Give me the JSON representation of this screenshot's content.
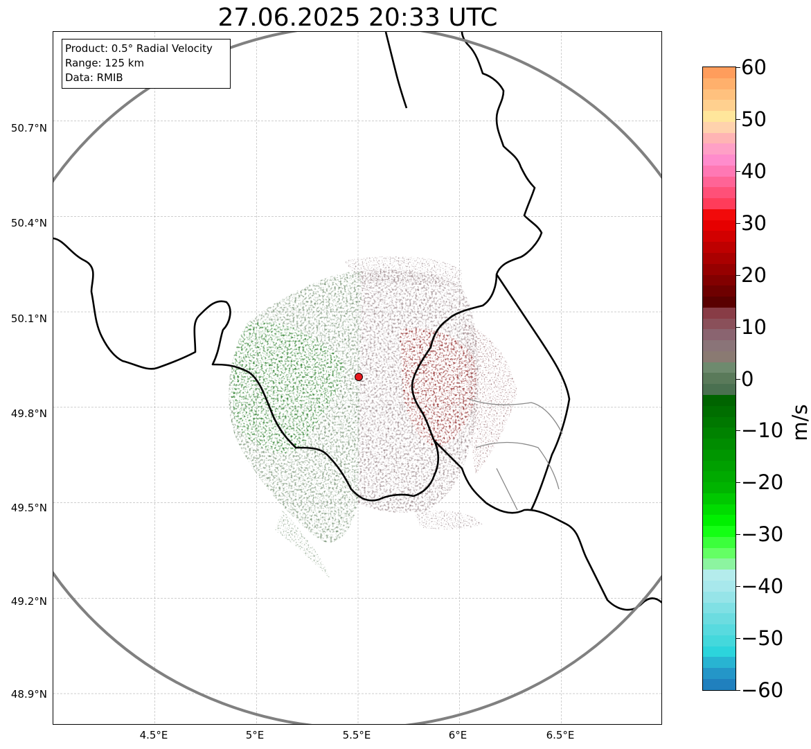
{
  "title": "27.06.2025 20:33 UTC",
  "info": {
    "product": "Product: 0.5° Radial Velocity",
    "range": "Range: 125 km",
    "data": "Data: RMIB"
  },
  "axes": {
    "lat_labels": [
      "50.7°N",
      "50.4°N",
      "50.1°N",
      "49.8°N",
      "49.5°N",
      "49.2°N",
      "48.9°N"
    ],
    "lon_labels": [
      "4.5°E",
      "5°E",
      "5.5°E",
      "6°E",
      "6.5°E"
    ],
    "lat_values": [
      50.7,
      50.4,
      50.1,
      49.8,
      49.5,
      49.2,
      48.9
    ],
    "lon_values": [
      4.5,
      5.0,
      5.5,
      6.0,
      6.5
    ],
    "lat_range": [
      48.8,
      50.98
    ],
    "lon_range": [
      4.0,
      7.0
    ],
    "grid": true
  },
  "radar": {
    "site_lon": 5.505,
    "site_lat": 49.914,
    "range_km": 125,
    "range_ring_color": "#808080",
    "site_marker_color": "#e8191e"
  },
  "colorbar": {
    "unit": "m/s",
    "min": -60,
    "max": 60,
    "ticks": [
      "60",
      "50",
      "40",
      "30",
      "20",
      "10",
      "0",
      "−10",
      "−20",
      "−30",
      "−40",
      "−50",
      "−60"
    ],
    "tick_values": [
      60,
      50,
      40,
      30,
      20,
      10,
      0,
      -10,
      -20,
      -30,
      -40,
      -50,
      -60
    ],
    "segments_top_to_bottom": [
      "#ff9d5c",
      "#ffb06c",
      "#ffc17e",
      "#ffd08f",
      "#ffe69b",
      "#ffd2ad",
      "#ffb4b4",
      "#ffa0c6",
      "#ff8ccc",
      "#ff78b4",
      "#ff6496",
      "#ff5078",
      "#ff3c5a",
      "#f20a0a",
      "#e60000",
      "#d20000",
      "#be0000",
      "#aa0000",
      "#960000",
      "#820000",
      "#6e0000",
      "#5a0000",
      "#883c46",
      "#8a505a",
      "#8a6470",
      "#8a7478",
      "#8a7a72",
      "#6e8a6e",
      "#5a7a5a",
      "#4a7050",
      "#006400",
      "#006e00",
      "#007800",
      "#008200",
      "#008c00",
      "#009600",
      "#00a000",
      "#00aa00",
      "#00b400",
      "#00c800",
      "#00dc00",
      "#00f000",
      "#14ff14",
      "#3cff3c",
      "#64ff64",
      "#8cf4a0",
      "#b4ecec",
      "#a8e8ec",
      "#96e4e8",
      "#80e0e4",
      "#6cdce0",
      "#58dadf",
      "#44d8dc",
      "#2cd4dc",
      "#28b4d2",
      "#2496c8",
      "#2080be"
    ],
    "segment_values_top_to_bottom": [
      60,
      58,
      56,
      54,
      52,
      50,
      48,
      46,
      44,
      42,
      40,
      38,
      36,
      34,
      32,
      30,
      28,
      26,
      24,
      22,
      20,
      18,
      16,
      14,
      12,
      10,
      8,
      6,
      4,
      2,
      0,
      -2,
      -4,
      -6,
      -8,
      -10,
      -12,
      -14,
      -16,
      -18,
      -20,
      -22,
      -24,
      -26,
      -28,
      -30,
      -32,
      -34,
      -36,
      -38,
      -40,
      -42,
      -44,
      -46,
      -48,
      -50,
      -52
    ]
  }
}
